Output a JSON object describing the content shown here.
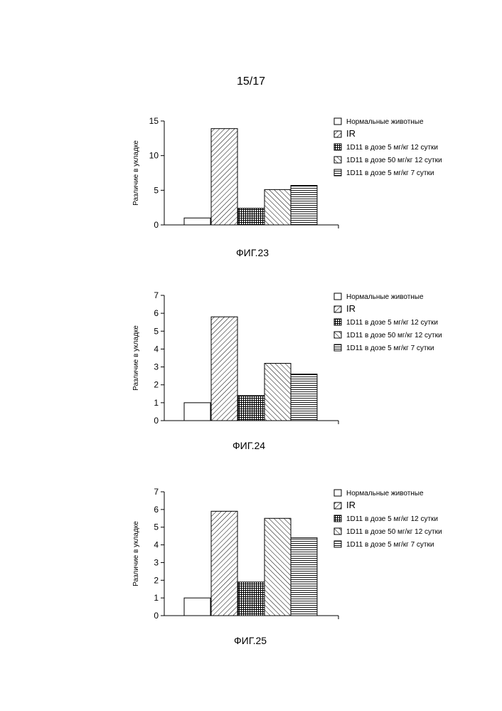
{
  "page_number": "15/17",
  "chart_data": [
    {
      "type": "bar",
      "caption": "ФИГ.23",
      "ylabel": "Различие в укладке",
      "ylim": [
        0,
        15
      ],
      "yticks": [
        0,
        5,
        10,
        15
      ],
      "categories": [
        "Нормальные животные",
        "IR",
        "1D11 в дозе 5 мг/кг 12 сутки",
        "1D11 в дозе 50 мг/кг 12 сутки",
        "1D11 в дозе 5 мг/кг 7 сутки"
      ],
      "values": [
        1.0,
        13.9,
        2.4,
        5.1,
        5.7
      ]
    },
    {
      "type": "bar",
      "caption": "ФИГ.24",
      "ylabel": "Различие в укладке",
      "ylim": [
        0,
        7
      ],
      "yticks": [
        0,
        1,
        2,
        3,
        4,
        5,
        6,
        7
      ],
      "categories": [
        "Нормальные животные",
        "IR",
        "1D11 в дозе 5 мг/кг 12 сутки",
        "1D11 в дозе 50 мг/кг 12 сутки",
        "1D11 в дозе 5 мг/кг 7 сутки"
      ],
      "values": [
        1.0,
        5.8,
        1.4,
        3.2,
        2.6
      ]
    },
    {
      "type": "bar",
      "caption": "ФИГ.25",
      "ylabel": "Различие в укладке",
      "ylim": [
        0,
        7
      ],
      "yticks": [
        0,
        1,
        2,
        3,
        4,
        5,
        6,
        7
      ],
      "categories": [
        "Нормальные животные",
        "IR",
        "1D11 в дозе 5 мг/кг 12 сутки",
        "1D11 в дозе 50 мг/кг 12 сутки",
        "1D11 в дозе 5 мг/кг 7 сутки"
      ],
      "values": [
        1.0,
        5.9,
        1.9,
        5.5,
        4.4
      ]
    }
  ]
}
